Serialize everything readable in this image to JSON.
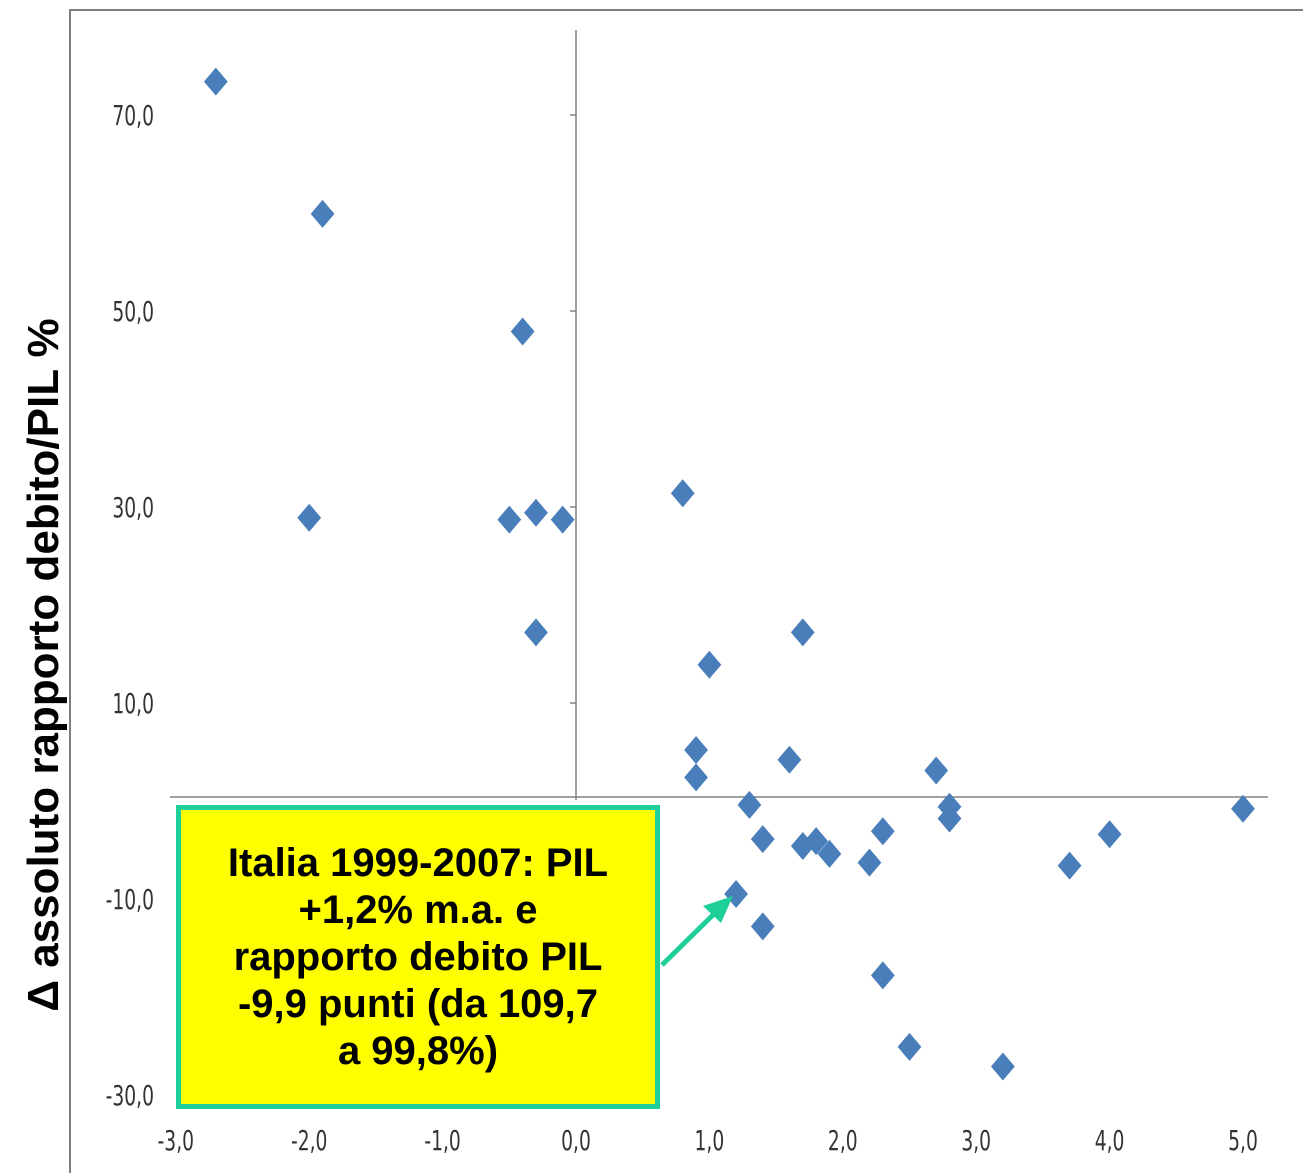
{
  "chart_data": {
    "type": "scatter",
    "title": "",
    "xlabel": "",
    "ylabel": "Δ assoluto rapporto debito/PIL %",
    "xlim": [
      -3.0,
      5.0
    ],
    "ylim": [
      -32,
      76
    ],
    "x_ticks": [
      "-3,0",
      "-2,0",
      "-1,0",
      "0,0",
      "1,0",
      "2,0",
      "3,0",
      "4,0",
      "5,0"
    ],
    "y_ticks": [
      "70,0",
      "50,0",
      "30,0",
      "10,0",
      "-10,0",
      "-30,0"
    ],
    "grid": false,
    "marker": "diamond",
    "color": "#4a7ebb",
    "points": [
      [
        -2.7,
        73.0
      ],
      [
        -1.9,
        59.5
      ],
      [
        -2.0,
        28.5
      ],
      [
        -0.4,
        47.5
      ],
      [
        -0.5,
        28.3
      ],
      [
        -0.3,
        29.0
      ],
      [
        -0.1,
        28.3
      ],
      [
        -0.3,
        16.8
      ],
      [
        0.8,
        31.0
      ],
      [
        1.0,
        13.5
      ],
      [
        0.9,
        4.8
      ],
      [
        0.9,
        2.0
      ],
      [
        1.3,
        -0.8
      ],
      [
        1.2,
        -9.9
      ],
      [
        1.4,
        -4.3
      ],
      [
        1.4,
        -13.2
      ],
      [
        1.6,
        3.8
      ],
      [
        1.7,
        16.8
      ],
      [
        1.7,
        -5.0
      ],
      [
        1.8,
        -4.5
      ],
      [
        1.9,
        -5.8
      ],
      [
        2.2,
        -6.7
      ],
      [
        2.3,
        -3.5
      ],
      [
        2.3,
        -18.2
      ],
      [
        2.5,
        -25.5
      ],
      [
        2.7,
        2.7
      ],
      [
        2.8,
        -1.0
      ],
      [
        2.8,
        -2.2
      ],
      [
        3.2,
        -27.5
      ],
      [
        3.7,
        -7.0
      ],
      [
        4.0,
        -3.8
      ],
      [
        5.0,
        -1.2
      ]
    ]
  },
  "annotation": {
    "text": "Italia 1999-2007: PIL\n+1,2% m.a. e\nrapporto debito PIL\n-9,9 punti (da 109,7\na 99,8%)",
    "border_color": "#1fcf9a",
    "background": "#ffff00",
    "arrow_target": [
      1.2,
      -9.9
    ]
  }
}
